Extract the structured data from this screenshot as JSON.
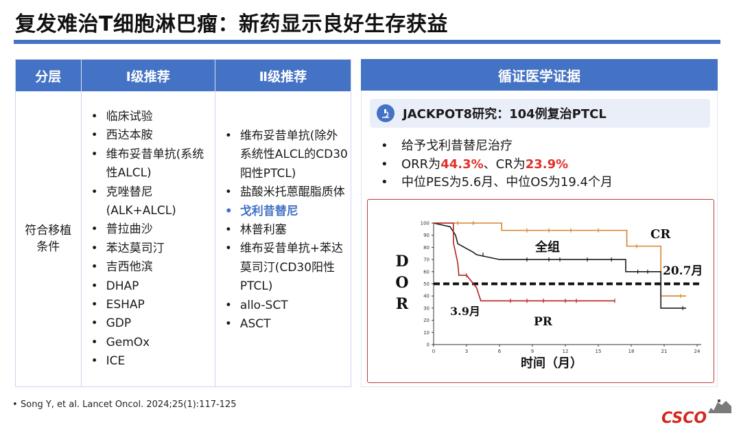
{
  "title": "复发难治T细胞淋巴瘤：新药显示良好生存获益",
  "table": {
    "headers": [
      "分层",
      "Ⅰ级推荐",
      "Ⅱ级推荐"
    ],
    "condition": "符合移植条件",
    "level1": [
      "临床试验",
      "西达本胺",
      "维布妥昔单抗(系统性ALCL)",
      "克唑替尼(ALK+ALCL)",
      "普拉曲沙",
      "苯达莫司汀",
      "吉西他滨",
      "DHAP",
      "ESHAP",
      "GDP",
      "GemOx",
      "ICE"
    ],
    "level2": [
      "维布妥昔单抗(除外系统性ALCL的CD30阳性PTCL)",
      "盐酸米托蒽醌脂质体",
      "戈利昔替尼",
      "林普利塞",
      "维布妥昔单抗+苯达莫司汀(CD30阳性PTCL)",
      "allo-SCT",
      "ASCT"
    ],
    "level2_highlight": "戈利昔替尼"
  },
  "evidence": {
    "header": "循证医学证据",
    "study_icon": "microscope-icon",
    "study": "JACKPOT8研究：104例复治PTCL",
    "point1": "给予戈利昔替尼治疗",
    "orr_prefix": "ORR为",
    "orr_value": "44.3%",
    "sep": "、CR为",
    "cr_value": "23.9%",
    "point3": "中位PES为5.6月、中位OS为19.4个月"
  },
  "colors": {
    "accent": "#4472c4",
    "highlight_red": "#e0302a",
    "chart_border": "#c23a3a",
    "cr": "#d9822b",
    "all": "#1a1a1a",
    "pr": "#b22222"
  },
  "chart_data": {
    "type": "line",
    "ylabel": "D O R",
    "xlabel": "时间（月）",
    "xlim": [
      0,
      24
    ],
    "ylim": [
      0,
      100
    ],
    "xticks": [
      0,
      3,
      6,
      9,
      12,
      15,
      18,
      21,
      24
    ],
    "yticks": [
      0,
      10,
      20,
      30,
      40,
      50,
      60,
      70,
      80,
      90,
      100
    ],
    "reference_line": {
      "y": 50,
      "style": "dashed"
    },
    "series": [
      {
        "name": "CR",
        "color": "#d9822b",
        "points": [
          [
            0,
            100
          ],
          [
            6.2,
            100
          ],
          [
            6.2,
            94
          ],
          [
            17.6,
            94
          ],
          [
            17.6,
            81
          ],
          [
            20.7,
            81
          ],
          [
            20.7,
            40
          ],
          [
            23,
            40
          ]
        ],
        "censors": [
          [
            2.2,
            100
          ],
          [
            3.6,
            100
          ],
          [
            8.5,
            94
          ],
          [
            10.5,
            94
          ],
          [
            12.5,
            94
          ],
          [
            15,
            94
          ],
          [
            18.5,
            81
          ],
          [
            22.5,
            40
          ]
        ]
      },
      {
        "name": "全组",
        "color": "#1a1a1a",
        "points": [
          [
            0,
            100
          ],
          [
            1.5,
            97
          ],
          [
            2.0,
            90
          ],
          [
            2.2,
            83
          ],
          [
            3.6,
            76
          ],
          [
            3.9,
            74
          ],
          [
            6.0,
            70
          ],
          [
            17.5,
            70
          ],
          [
            17.5,
            60
          ],
          [
            20.7,
            60
          ],
          [
            20.7,
            30
          ],
          [
            23,
            30
          ]
        ],
        "censors": [
          [
            4.5,
            74
          ],
          [
            8.5,
            70
          ],
          [
            10.5,
            70
          ],
          [
            11.5,
            70
          ],
          [
            14,
            70
          ],
          [
            16.2,
            70
          ],
          [
            18.6,
            60
          ],
          [
            19.5,
            60
          ],
          [
            22.7,
            30
          ]
        ]
      },
      {
        "name": "PR",
        "color": "#b22222",
        "points": [
          [
            0,
            100
          ],
          [
            1.8,
            100
          ],
          [
            1.8,
            84
          ],
          [
            2.2,
            67
          ],
          [
            2.3,
            57
          ],
          [
            3.0,
            57
          ],
          [
            3.9,
            47
          ],
          [
            4.3,
            36
          ],
          [
            16.5,
            36
          ]
        ],
        "censors": [
          [
            3.0,
            57
          ],
          [
            7.0,
            36
          ],
          [
            8.5,
            36
          ],
          [
            10.0,
            36
          ],
          [
            12.0,
            36
          ],
          [
            13.0,
            36
          ],
          [
            16.5,
            36
          ]
        ]
      }
    ],
    "annotations": {
      "cr": "CR",
      "all": "全组",
      "pr": "PR",
      "median_pr": "3.9月",
      "median_cr": "20.7月"
    }
  },
  "reference": "Song Y, et al. Lancet Oncol. 2024;25(1):117-125",
  "logo": {
    "text": "CSCO",
    "icon": "great-wall-icon"
  }
}
